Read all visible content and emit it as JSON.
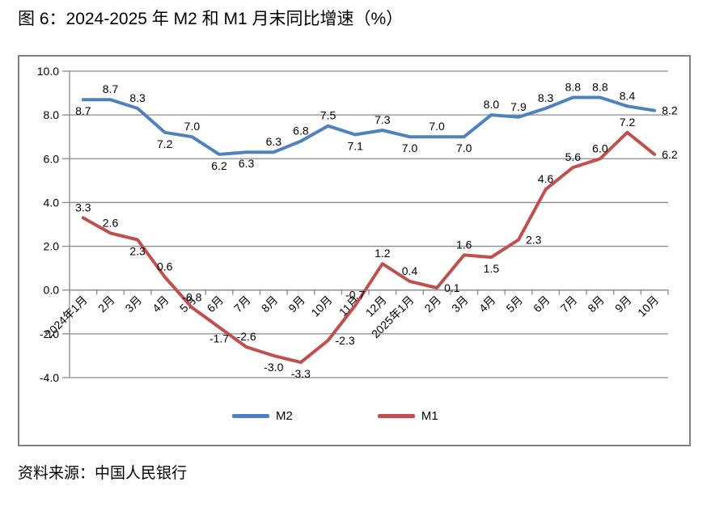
{
  "page": {
    "title": "图 6：2024-2025 年 M2 和 M1 月末同比增速（%）",
    "source": "资料来源：中国人民银行"
  },
  "chart_data": {
    "type": "line",
    "title": "2024-2025 年 M2 和 M1 月末同比增速（%）",
    "categories": [
      "2024年1月",
      "2月",
      "3月",
      "4月",
      "5月",
      "6月",
      "7月",
      "8月",
      "9月",
      "10月",
      "11月",
      "12月",
      "2025年1月",
      "2月",
      "3月",
      "4月",
      "5月",
      "6月",
      "7月",
      "8月",
      "9月",
      "10月"
    ],
    "series": [
      {
        "name": "M2",
        "color": "#4F81BD",
        "values": [
          8.7,
          8.7,
          8.3,
          7.2,
          7.0,
          6.2,
          6.3,
          6.3,
          6.8,
          7.5,
          7.1,
          7.3,
          7.0,
          7.0,
          7.0,
          8.0,
          7.9,
          8.3,
          8.8,
          8.8,
          8.4,
          8.2
        ],
        "label_positions": [
          "below",
          "above",
          "above",
          "below",
          "above",
          "below",
          "below",
          "above",
          "above",
          "above",
          "below",
          "above",
          "below",
          "above",
          "below",
          "above",
          "above",
          "above",
          "above",
          "above",
          "above",
          "right"
        ]
      },
      {
        "name": "M1",
        "color": "#C0504D",
        "values": [
          3.3,
          2.6,
          2.3,
          0.6,
          -0.8,
          -1.7,
          -2.6,
          -3.0,
          -3.3,
          -2.3,
          -0.7,
          1.2,
          0.4,
          0.1,
          1.6,
          1.5,
          2.3,
          4.6,
          5.6,
          6.0,
          7.2,
          6.2
        ],
        "label_positions": [
          "above",
          "above",
          "below",
          "above",
          "above",
          "below",
          "above",
          "below",
          "below",
          "right",
          "above",
          "above",
          "above",
          "right",
          "above",
          "below",
          "right",
          "above",
          "above",
          "above",
          "above",
          "right"
        ]
      }
    ],
    "y_axis": {
      "min": -4,
      "max": 10,
      "step": 2,
      "tick_labels": [
        "10.0",
        "8.0",
        "6.0",
        "4.0",
        "2.0",
        "0.0",
        "-2.0",
        "-4.0"
      ]
    },
    "x_axis": {
      "label_rotation_deg": 45
    },
    "grid": true,
    "legend_position": "bottom",
    "axis_color": "#8a8a8a",
    "data_label_color": "#000000"
  }
}
